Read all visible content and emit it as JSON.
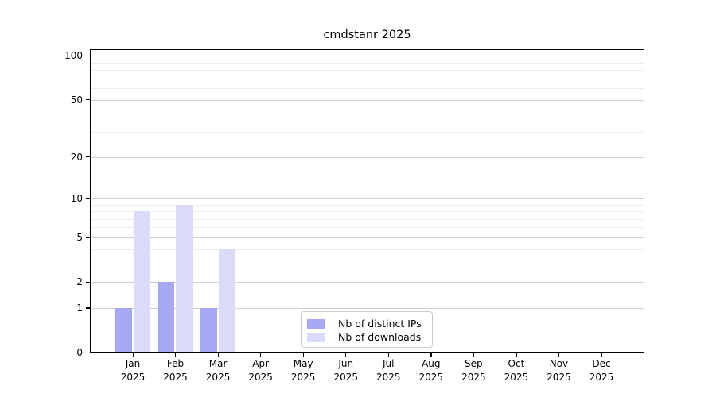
{
  "title": "cmdstanr 2025",
  "chart_data": {
    "type": "bar",
    "title": "cmdstanr 2025",
    "categories": [
      "Jan 2025",
      "Feb 2025",
      "Mar 2025",
      "Apr 2025",
      "May 2025",
      "Jun 2025",
      "Jul 2025",
      "Aug 2025",
      "Sep 2025",
      "Oct 2025",
      "Nov 2025",
      "Dec 2025"
    ],
    "series": [
      {
        "name": "Nb of distinct IPs",
        "color": "#a6a8f3",
        "values": [
          1,
          2,
          1,
          0,
          0,
          0,
          0,
          0,
          0,
          0,
          0,
          0
        ]
      },
      {
        "name": "Nb of downloads",
        "color": "#d9dbf9",
        "values": [
          8,
          9,
          4,
          0,
          0,
          0,
          0,
          0,
          0,
          0,
          0,
          0
        ]
      }
    ],
    "xlabel": "",
    "ylabel": "",
    "yscale": "log1p",
    "ylim": [
      0,
      111
    ],
    "ymajor_ticks": [
      0,
      1,
      2,
      5,
      10,
      20,
      50,
      100
    ],
    "yminor_gridlines": [
      3,
      4,
      6,
      7,
      8,
      9,
      30,
      40,
      60,
      70,
      80,
      90
    ],
    "grid": "horizontal",
    "legend_position": "bottom-center"
  },
  "colors": {
    "bar_distinct_ips": "#a6a8f3",
    "bar_downloads": "#d9dbf9",
    "major_grid": "#d0d0d0",
    "minor_grid": "#ececec",
    "frame": "#000000",
    "legend_border": "#cccccc"
  }
}
